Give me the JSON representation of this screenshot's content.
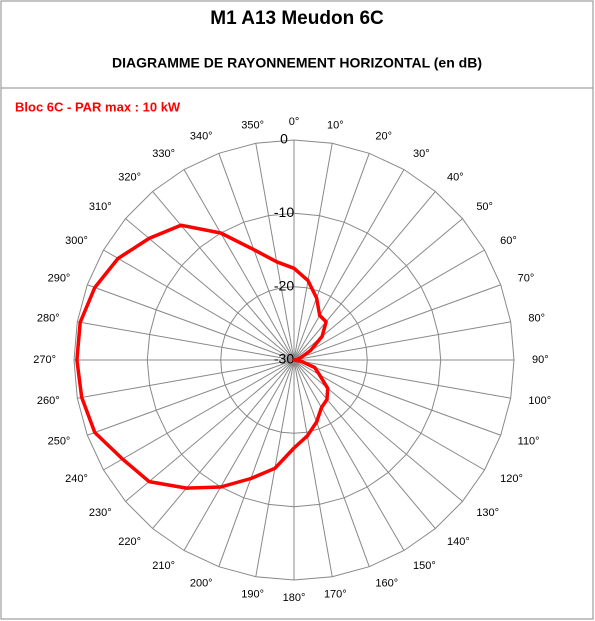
{
  "chart_data": {
    "type": "polar",
    "title": "M1 A13 Meudon 6C",
    "subtitle": "DIAGRAMME DE RAYONNEMENT HORIZONTAL  (en dB)",
    "x": [
      0,
      10,
      20,
      30,
      40,
      50,
      60,
      70,
      80,
      90,
      100,
      110,
      120,
      130,
      140,
      150,
      160,
      170,
      180,
      190,
      200,
      210,
      220,
      230,
      240,
      250,
      260,
      270,
      280,
      290,
      300,
      310,
      320,
      330,
      340,
      350
    ],
    "xticks": [
      {
        "value": 0,
        "label": "0°"
      },
      {
        "value": 10,
        "label": "10°"
      },
      {
        "value": 20,
        "label": "20°"
      },
      {
        "value": 30,
        "label": "30°"
      },
      {
        "value": 40,
        "label": "40°"
      },
      {
        "value": 50,
        "label": "50°"
      },
      {
        "value": 60,
        "label": "60°"
      },
      {
        "value": 70,
        "label": "70°"
      },
      {
        "value": 80,
        "label": "80°"
      },
      {
        "value": 90,
        "label": "90°"
      },
      {
        "value": 100,
        "label": "100°"
      },
      {
        "value": 110,
        "label": "110°"
      },
      {
        "value": 120,
        "label": "120°"
      },
      {
        "value": 130,
        "label": "130°"
      },
      {
        "value": 140,
        "label": "140°"
      },
      {
        "value": 150,
        "label": "150°"
      },
      {
        "value": 160,
        "label": "160°"
      },
      {
        "value": 170,
        "label": "170°"
      },
      {
        "value": 180,
        "label": "180°"
      },
      {
        "value": 190,
        "label": "190°"
      },
      {
        "value": 200,
        "label": "200°"
      },
      {
        "value": 210,
        "label": "210°"
      },
      {
        "value": 220,
        "label": "220°"
      },
      {
        "value": 230,
        "label": "230°"
      },
      {
        "value": 240,
        "label": "240°"
      },
      {
        "value": 250,
        "label": "250°"
      },
      {
        "value": 260,
        "label": "260°"
      },
      {
        "value": 270,
        "label": "270°"
      },
      {
        "value": 280,
        "label": "280°"
      },
      {
        "value": 290,
        "label": "290°"
      },
      {
        "value": 300,
        "label": "300°"
      },
      {
        "value": 310,
        "label": "310°"
      },
      {
        "value": 320,
        "label": "320°"
      },
      {
        "value": 330,
        "label": "330°"
      },
      {
        "value": 340,
        "label": "340°"
      },
      {
        "value": 350,
        "label": "350°"
      }
    ],
    "ylim": [
      -30,
      0
    ],
    "yticks": [
      0,
      -10,
      -20,
      -30
    ],
    "series": [
      {
        "name": "Bloc 6C  - PAR max : 10 kW",
        "color": "#ff0000",
        "values": [
          -17.5,
          -19,
          -21,
          -23,
          -23.2,
          -25,
          -27.4,
          -29,
          -29.5,
          -30,
          -29,
          -27,
          -26,
          -24,
          -23,
          -22.5,
          -21,
          -19.5,
          -18,
          -15,
          -12.8,
          -10,
          -7.2,
          -4.2,
          -3,
          -1.1,
          -0.6,
          -0.4,
          -0.4,
          -1.1,
          -2.3,
          -4.2,
          -6,
          -10,
          -14,
          -16.4
        ]
      }
    ]
  }
}
